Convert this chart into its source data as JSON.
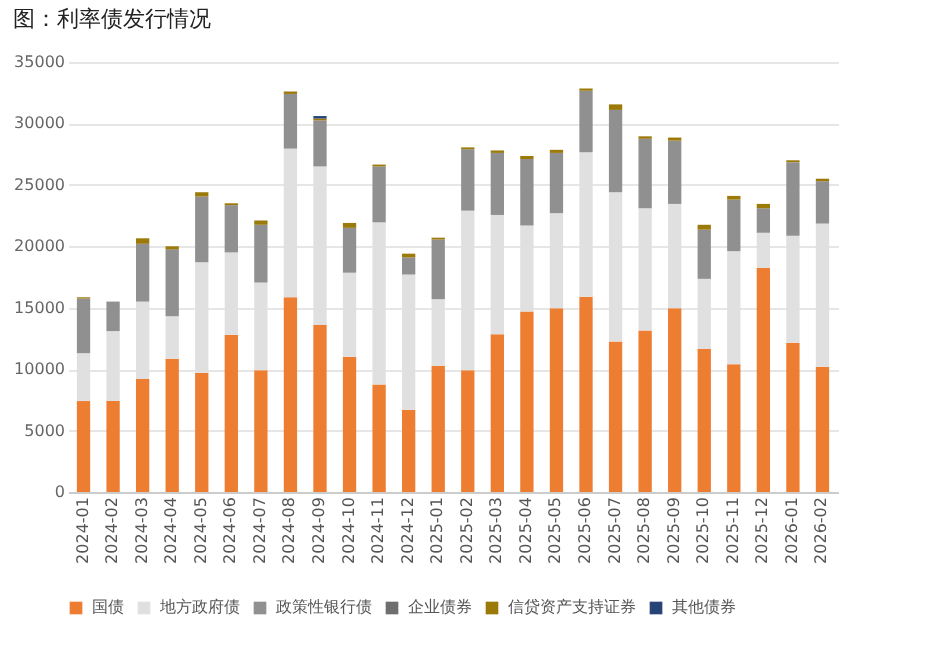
{
  "chart_data": {
    "type": "bar",
    "title": "图：利率债发行情况",
    "stacked": true,
    "categories": [
      "2024-01",
      "2024-02",
      "2024-03",
      "2024-04",
      "2024-05",
      "2024-06",
      "2024-07",
      "2024-08",
      "2024-09",
      "2024-10",
      "2024-11",
      "2024-12",
      "2025-01",
      "2025-02",
      "2025-03",
      "2025-04",
      "2025-05",
      "2025-06",
      "2025-07",
      "2025-08",
      "2025-09",
      "2025-10",
      "2025-11",
      "2025-12",
      "2026-01",
      "2026-02"
    ],
    "series": [
      {
        "name": "国债",
        "color": "#ed7d31",
        "values": [
          7400,
          7400,
          9200,
          10850,
          9700,
          12800,
          9900,
          15850,
          13600,
          11000,
          8750,
          6700,
          10250,
          9900,
          12850,
          14700,
          14950,
          15900,
          12250,
          13150,
          14950,
          11650,
          10400,
          18250,
          12150,
          10200
        ]
      },
      {
        "name": "地方政府债",
        "color": "#e0e0e0",
        "values": [
          3900,
          5700,
          6300,
          3450,
          9000,
          6700,
          7150,
          12100,
          12900,
          6850,
          13200,
          11000,
          5450,
          13000,
          9700,
          7000,
          7750,
          11750,
          12150,
          9950,
          8500,
          5700,
          9200,
          2850,
          8700,
          11650
        ]
      },
      {
        "name": "政策性银行债",
        "color": "#909090",
        "values": [
          4450,
          2400,
          4700,
          5450,
          5350,
          3850,
          4700,
          4450,
          3750,
          3650,
          4550,
          1400,
          4850,
          5000,
          5050,
          5400,
          4900,
          5000,
          6700,
          5650,
          5150,
          4000,
          4200,
          2000,
          6000,
          3450
        ]
      },
      {
        "name": "企业债券",
        "color": "#6e6e6e",
        "values": [
          0,
          0,
          0,
          0,
          0,
          0,
          0,
          0,
          0,
          0,
          0,
          0,
          0,
          0,
          0,
          0,
          0,
          0,
          0,
          0,
          0,
          0,
          0,
          0,
          0,
          0
        ]
      },
      {
        "name": "信贷资产支持证券",
        "color": "#9c7a0a",
        "values": [
          100,
          0,
          450,
          250,
          350,
          150,
          350,
          200,
          150,
          400,
          150,
          300,
          150,
          150,
          200,
          250,
          250,
          200,
          450,
          200,
          250,
          400,
          300,
          350,
          150,
          200
        ]
      },
      {
        "name": "其他债券",
        "color": "#264478",
        "values": [
          0,
          0,
          0,
          0,
          0,
          0,
          0,
          0,
          200,
          0,
          0,
          0,
          0,
          0,
          0,
          0,
          0,
          0,
          0,
          0,
          0,
          0,
          0,
          0,
          0,
          0
        ]
      }
    ],
    "ylim": [
      0,
      35000
    ],
    "yticks": [
      0,
      5000,
      10000,
      15000,
      20000,
      25000,
      30000,
      35000
    ],
    "grid": "y",
    "legend": "bottom"
  }
}
